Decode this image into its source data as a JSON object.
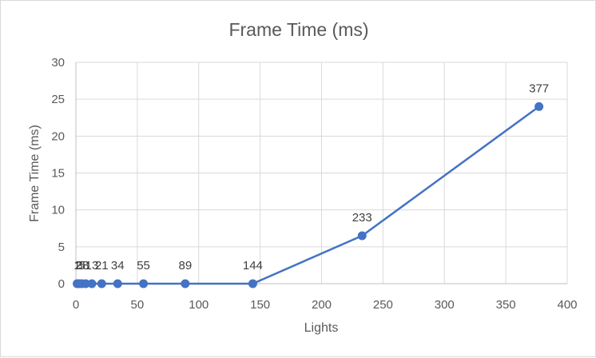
{
  "chart_data": {
    "type": "scatter",
    "title": "Frame Time (ms)",
    "xlabel": "Lights",
    "ylabel": "Frame Time (ms)",
    "xlim": [
      0,
      400
    ],
    "ylim": [
      0,
      30
    ],
    "x_ticks": [
      0,
      50,
      100,
      150,
      200,
      250,
      300,
      350,
      400
    ],
    "y_ticks": [
      0,
      5,
      10,
      15,
      20,
      25,
      30
    ],
    "grid": true,
    "legend": "none",
    "line_color": "#4472c4",
    "series": [
      {
        "x": [
          1,
          2,
          3,
          5,
          8,
          13,
          21,
          34,
          55,
          89,
          144,
          233,
          377
        ],
        "y": [
          0,
          0,
          0,
          0,
          0,
          0,
          0,
          0,
          0,
          0,
          0,
          6.5,
          24
        ],
        "labels": [
          "1",
          "2",
          "3",
          "5",
          "8",
          "13",
          "21",
          "34",
          "55",
          "89",
          "144",
          "233",
          "377"
        ]
      }
    ]
  }
}
